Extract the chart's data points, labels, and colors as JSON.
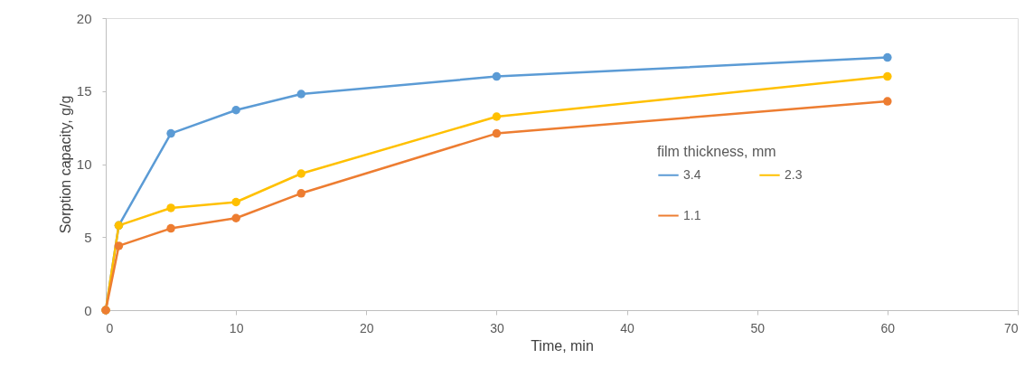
{
  "chart_data": {
    "type": "line",
    "xlabel": "Time, min",
    "ylabel": "Sorption capacity, g/g",
    "legend_title": "film thickness, mm",
    "x": [
      0,
      1,
      5,
      10,
      15,
      30,
      60
    ],
    "series": [
      {
        "name": "3.4",
        "color": "#5b9bd5",
        "values": [
          0,
          5.8,
          12.1,
          13.7,
          14.8,
          16.0,
          17.3
        ]
      },
      {
        "name": "2.3",
        "color": "#ffc000",
        "values": [
          0,
          5.8,
          7.0,
          7.4,
          9.35,
          13.25,
          16.0
        ]
      },
      {
        "name": "1.1",
        "color": "#ed7d31",
        "values": [
          0,
          4.4,
          5.6,
          6.3,
          8.0,
          12.1,
          14.3
        ]
      }
    ],
    "xlim": [
      0,
      70
    ],
    "xticks": [
      0,
      10,
      20,
      30,
      40,
      50,
      60,
      70
    ],
    "ylim": [
      0,
      20
    ],
    "yticks": [
      0,
      5,
      10,
      15,
      20
    ],
    "grid": false,
    "legend": "right",
    "marker": "circle",
    "line_style": "solid"
  }
}
